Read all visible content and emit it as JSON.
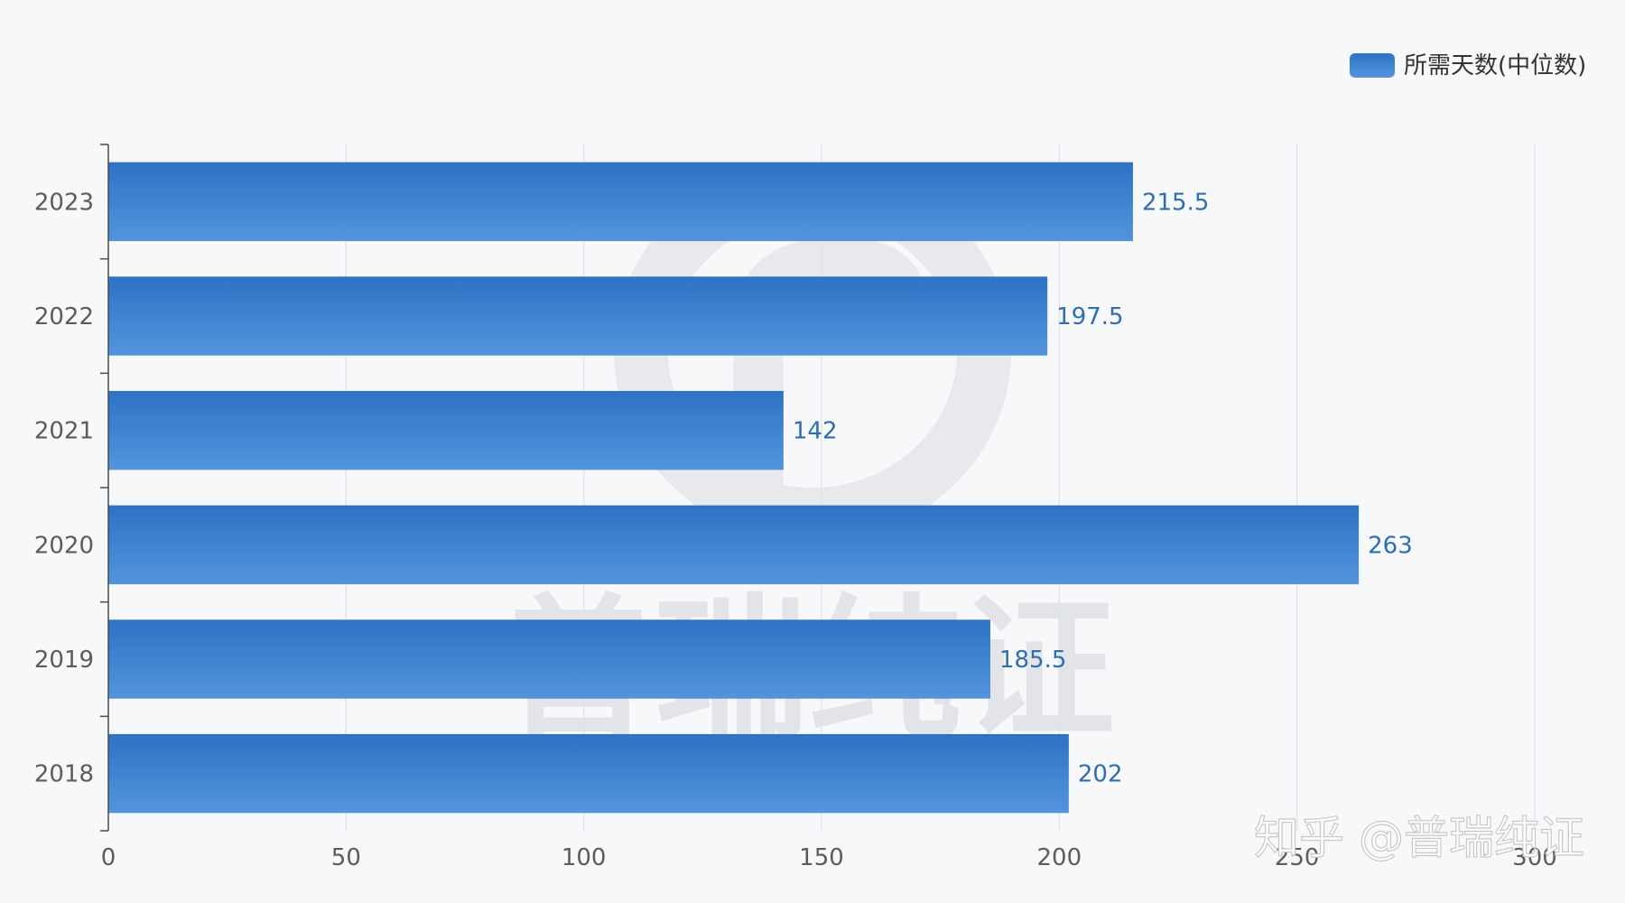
{
  "chart_data": {
    "type": "bar",
    "orientation": "horizontal",
    "categories": [
      "2023",
      "2022",
      "2021",
      "2020",
      "2019",
      "2018"
    ],
    "series": [
      {
        "name": "所需天数(中位数)",
        "values": [
          215.5,
          197.5,
          142,
          263,
          185.5,
          202
        ]
      }
    ],
    "xlim": [
      0,
      300
    ],
    "xticks": [
      0,
      50,
      100,
      150,
      200,
      250,
      300
    ],
    "data_labels": [
      "215.5",
      "197.5",
      "142",
      "263",
      "185.5",
      "202"
    ],
    "grid": true,
    "legend_position": "top-right",
    "colors": {
      "bar_top": "#2d72c4",
      "bar_bottom": "#5395dc",
      "label": "#2f6db3",
      "background": "#f7f8fa",
      "grid": "#dfe3ec"
    }
  },
  "watermark": {
    "text": "普瑞纯证",
    "logo_icon": "p-circle-logo-icon"
  },
  "credit": "知乎 @普瑞纯证"
}
